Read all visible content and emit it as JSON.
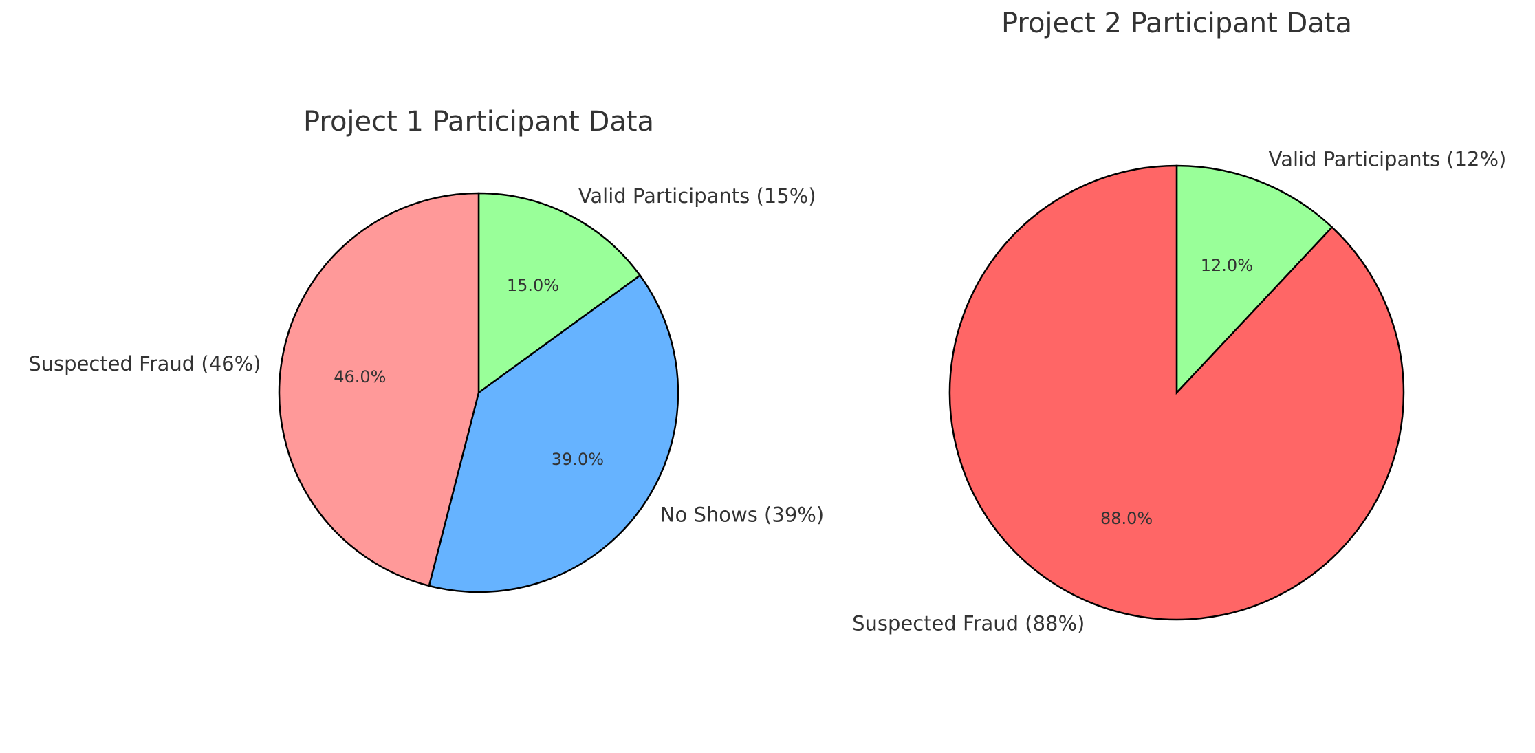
{
  "chart_data": [
    {
      "type": "pie",
      "title": "Project 1 Participant Data",
      "categories": [
        "Valid Participants (15%)",
        "No Shows (39%)",
        "Suspected Fraud (46%)"
      ],
      "values": [
        15,
        39,
        46
      ],
      "value_labels": [
        "15.0%",
        "39.0%",
        "46.0%"
      ],
      "colors": [
        "#99ff99",
        "#66b3ff",
        "#ff9999"
      ]
    },
    {
      "type": "pie",
      "title": "Project 2 Participant Data",
      "categories": [
        "Valid Participants (12%)",
        "Suspected Fraud (88%)"
      ],
      "values": [
        12,
        88
      ],
      "value_labels": [
        "12.0%",
        "88.0%"
      ],
      "colors": [
        "#99ff99",
        "#ff6666"
      ]
    }
  ]
}
